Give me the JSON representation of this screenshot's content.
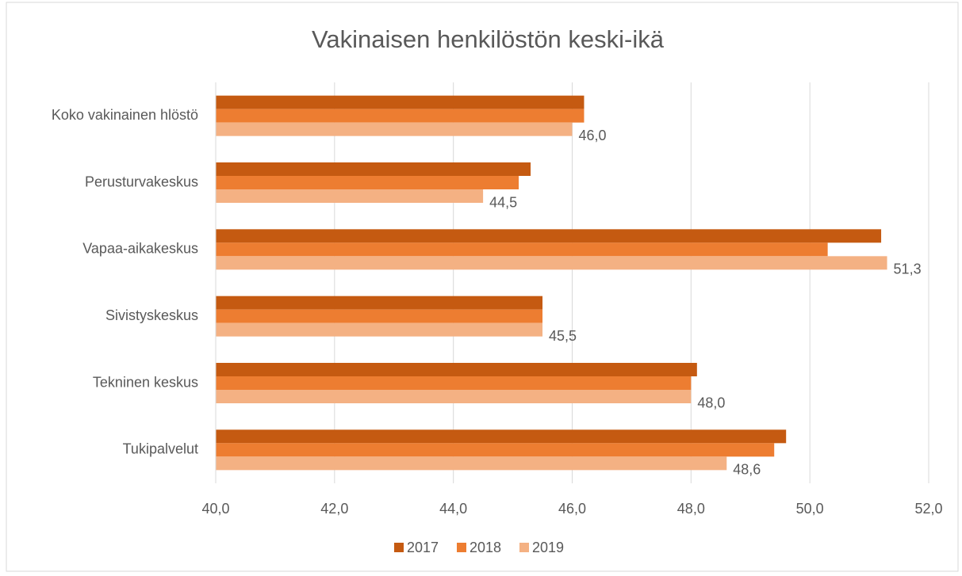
{
  "chart_data": {
    "type": "hbar",
    "title": "Vakinaisen henkilöstön keski-ikä",
    "categories": [
      "Koko vakinainen hlöstö",
      "Perusturvakeskus",
      "Vapaa-aikakeskus",
      "Sivistyskeskus",
      "Tekninen keskus",
      "Tukipalvelut"
    ],
    "series": [
      {
        "name": "2017",
        "color": "#c55a11",
        "values": [
          46.2,
          45.3,
          51.2,
          45.5,
          48.1,
          49.6
        ]
      },
      {
        "name": "2018",
        "color": "#ed7d31",
        "values": [
          46.2,
          45.1,
          50.3,
          45.5,
          48.0,
          49.4
        ]
      },
      {
        "name": "2019",
        "color": "#f4b183",
        "values": [
          46.0,
          44.5,
          51.3,
          45.5,
          48.0,
          48.6
        ],
        "value_labels": [
          "46,0",
          "44,5",
          "51,3",
          "45,5",
          "48,0",
          "48,6"
        ]
      }
    ],
    "xlim": [
      40,
      52
    ],
    "xticks": [
      {
        "value": 40,
        "label": "40,0"
      },
      {
        "value": 42,
        "label": "42,0"
      },
      {
        "value": 44,
        "label": "44,0"
      },
      {
        "value": 46,
        "label": "46,0"
      },
      {
        "value": 48,
        "label": "48,0"
      },
      {
        "value": 50,
        "label": "50,0"
      },
      {
        "value": 52,
        "label": "52,0"
      }
    ],
    "grid": true,
    "legend": "bottom"
  }
}
